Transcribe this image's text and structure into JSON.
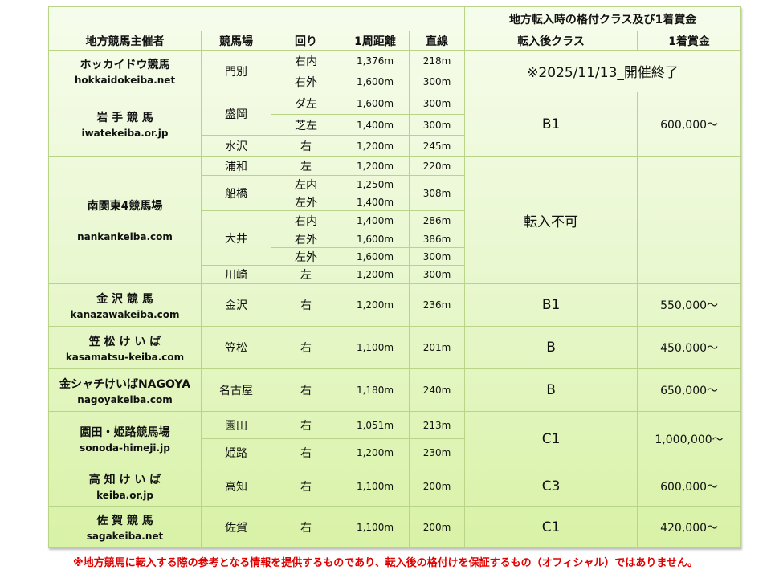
{
  "header": {
    "group_title": "地方転入時の格付クラス及び1着賞金",
    "columns": [
      "地方競馬主催者",
      "競馬場",
      "回り",
      "1周距離",
      "直線",
      "転入後クラス",
      "1着賞金"
    ]
  },
  "organizers": [
    {
      "name": "ホッカイドウ競馬",
      "url": "hokkaidokeiba.net",
      "notice": "※2025/11/13_開催終了",
      "venues": [
        {
          "name": "門別",
          "courses": [
            {
              "turn": "右内",
              "distance": "1,376m",
              "straight": "218m"
            },
            {
              "turn": "右外",
              "distance": "1,600m",
              "straight": "300m"
            }
          ]
        }
      ]
    },
    {
      "name": "岩 手 競 馬",
      "url": "iwatekeiba.or.jp",
      "class": "B1",
      "prize": "600,000～",
      "venues": [
        {
          "name": "盛岡",
          "courses": [
            {
              "turn": "ダ左",
              "distance": "1,600m",
              "straight": "300m"
            },
            {
              "turn": "芝左",
              "distance": "1,400m",
              "straight": "300m"
            }
          ]
        },
        {
          "name": "水沢",
          "courses": [
            {
              "turn": "右",
              "distance": "1,200m",
              "straight": "245m"
            }
          ]
        }
      ]
    },
    {
      "name": "南関東4競馬場",
      "url": "nankankeiba.com",
      "class": "転入不可",
      "prize": "",
      "venues": [
        {
          "name": "浦和",
          "courses": [
            {
              "turn": "左",
              "distance": "1,200m",
              "straight": "220m"
            }
          ]
        },
        {
          "name": "船橋",
          "straight": "308m",
          "courses": [
            {
              "turn": "左内",
              "distance": "1,250m"
            },
            {
              "turn": "左外",
              "distance": "1,400m"
            }
          ]
        },
        {
          "name": "大井",
          "courses": [
            {
              "turn": "右内",
              "distance": "1,400m",
              "straight": "286m"
            },
            {
              "turn": "右外",
              "distance": "1,600m",
              "straight": "386m"
            },
            {
              "turn": "左外",
              "distance": "1,600m",
              "straight": "300m"
            }
          ]
        },
        {
          "name": "川崎",
          "courses": [
            {
              "turn": "左",
              "distance": "1,200m",
              "straight": "300m"
            }
          ]
        }
      ]
    },
    {
      "name": "金 沢 競 馬",
      "url": "kanazawakeiba.com",
      "class": "B1",
      "prize": "550,000～",
      "venues": [
        {
          "name": "金沢",
          "courses": [
            {
              "turn": "右",
              "distance": "1,200m",
              "straight": "236m"
            }
          ]
        }
      ]
    },
    {
      "name": "笠 松 け い ば",
      "url": "kasamatsu-keiba.com",
      "class": "B",
      "prize": "450,000～",
      "venues": [
        {
          "name": "笠松",
          "courses": [
            {
              "turn": "右",
              "distance": "1,100m",
              "straight": "201m"
            }
          ]
        }
      ]
    },
    {
      "name": "金シャチけいばNAGOYA",
      "url": "nagoyakeiba.com",
      "class": "B",
      "prize": "650,000～",
      "venues": [
        {
          "name": "名古屋",
          "courses": [
            {
              "turn": "右",
              "distance": "1,180m",
              "straight": "240m"
            }
          ]
        }
      ]
    },
    {
      "name": "園田・姫路競馬場",
      "url": "sonoda-himeji.jp",
      "class": "C1",
      "prize": "1,000,000～",
      "venues": [
        {
          "name": "園田",
          "courses": [
            {
              "turn": "右",
              "distance": "1,051m",
              "straight": "213m"
            }
          ]
        },
        {
          "name": "姫路",
          "courses": [
            {
              "turn": "右",
              "distance": "1,200m",
              "straight": "230m"
            }
          ]
        }
      ]
    },
    {
      "name": "高 知 け い ば",
      "url": "keiba.or.jp",
      "class": "C3",
      "prize": "600,000～",
      "venues": [
        {
          "name": "高知",
          "courses": [
            {
              "turn": "右",
              "distance": "1,100m",
              "straight": "200m"
            }
          ]
        }
      ]
    },
    {
      "name": "佐 賀 競 馬",
      "url": "sagakeiba.net",
      "class": "C1",
      "prize": "420,000～",
      "venues": [
        {
          "name": "佐賀",
          "courses": [
            {
              "turn": "右",
              "distance": "1,100m",
              "straight": "200m"
            }
          ]
        }
      ]
    }
  ],
  "footer_note": "※地方競馬に転入する際の参考となる情報を提供するものであり、転入後の格付けを保証するもの（オフィシャル）ではありません。",
  "colors": {
    "border": "#b9d486",
    "background_top": "#f6fcec",
    "background_bottom": "#d8f2a6",
    "footer_text": "#e00000"
  }
}
